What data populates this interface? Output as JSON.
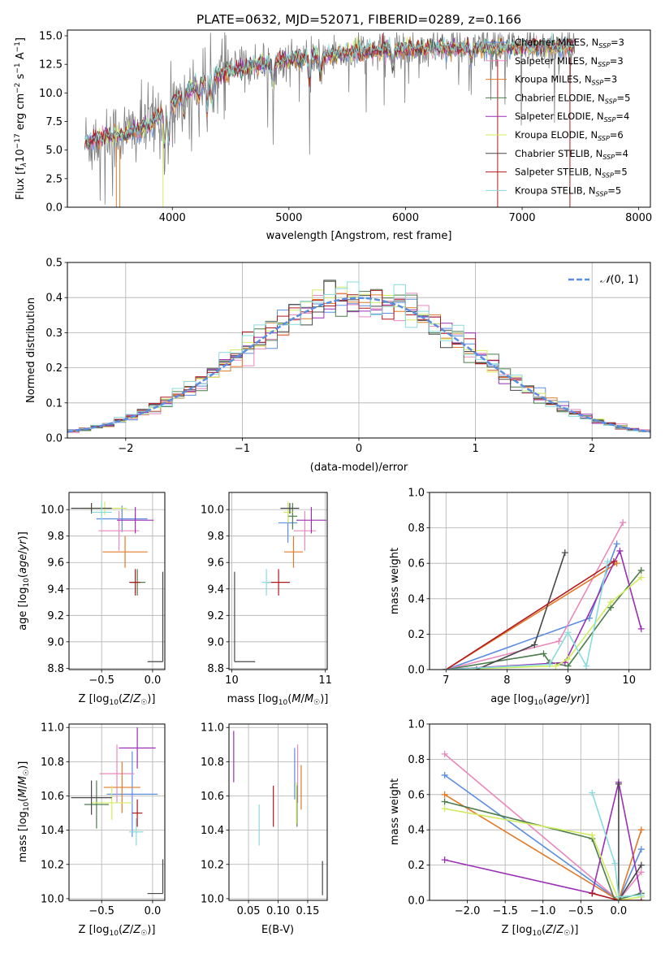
{
  "title": "PLATE=0632, MJD=52071, FIBERID=0289, z=0.166",
  "series": [
    {
      "name": "Chabrier MILES, N$_{SSP}$=3",
      "label_main": "Chabrier MILES, N",
      "label_sub": "SSP",
      "label_end": "=3",
      "color": "#5b8de0"
    },
    {
      "name": "Salpeter MILES, N$_{SSP}$=3",
      "label_main": "Salpeter MILES, N",
      "label_sub": "SSP",
      "label_end": "=3",
      "color": "#e888bc"
    },
    {
      "name": "Kroupa MILES, N$_{SSP}$=3",
      "label_main": "Kroupa MILES, N",
      "label_sub": "SSP",
      "label_end": "=3",
      "color": "#e07a28"
    },
    {
      "name": "Chabrier ELODIE, N$_{SSP}$=5",
      "label_main": "Chabrier ELODIE, N",
      "label_sub": "SSP",
      "label_end": "=5",
      "color": "#4c7c4c"
    },
    {
      "name": "Salpeter ELODIE, N$_{SSP}$=4",
      "label_main": "Salpeter ELODIE, N",
      "label_sub": "SSP",
      "label_end": "=4",
      "color": "#9a2fb5"
    },
    {
      "name": "Kroupa ELODIE, N$_{SSP}$=6",
      "label_main": "Kroupa ELODIE, N",
      "label_sub": "SSP",
      "label_end": "=6",
      "color": "#d2ec62"
    },
    {
      "name": "Chabrier STELIB, N$_{SSP}$=4",
      "label_main": "Chabrier STELIB, N",
      "label_sub": "SSP",
      "label_end": "=4",
      "color": "#484848"
    },
    {
      "name": "Salpeter STELIB, N$_{SSP}$=5",
      "label_main": "Salpeter STELIB, N",
      "label_sub": "SSP",
      "label_end": "=5",
      "color": "#b0181e"
    },
    {
      "name": "Kroupa STELIB, N$_{SSP}$=5",
      "label_main": "Kroupa STELIB, N",
      "label_sub": "SSP",
      "label_end": "=5",
      "color": "#88dcdc"
    }
  ],
  "chart_data": [
    {
      "id": "spectrum",
      "type": "line",
      "title": "PLATE=0632, MJD=52071, FIBERID=0289, z=0.166",
      "xlabel": "wavelength [Angstrom, rest frame]",
      "ylabel_main": "Flux [f",
      "ylabel_rest": "10",
      "ylabel_exp": "−17",
      "ylabel_units": " erg cm",
      "xlim": [
        3100,
        8100
      ],
      "ylim": [
        0,
        15.5
      ],
      "xticks": [
        4000,
        5000,
        6000,
        7000,
        8000
      ],
      "yticks": [
        0.0,
        2.5,
        5.0,
        7.5,
        10.0,
        12.5,
        15.0
      ],
      "data_color": "#808080",
      "continuum_x": [
        3250,
        3400,
        3600,
        3800,
        3950,
        4100,
        4300,
        4500,
        4800,
        5100,
        5500,
        5900,
        6300,
        6700,
        7000,
        7300,
        7450
      ],
      "continuum_y": [
        5.6,
        6.1,
        6.4,
        7.2,
        8.6,
        10.0,
        11.2,
        12.0,
        12.6,
        13.0,
        13.5,
        13.8,
        13.9,
        13.9,
        14.0,
        14.1,
        14.1
      ],
      "grid": false
    },
    {
      "id": "residuals",
      "type": "step",
      "xlabel": "(data-model)/error",
      "ylabel": "Normed distribution",
      "xlim": [
        -2.5,
        2.5
      ],
      "ylim": [
        0,
        0.5
      ],
      "xticks": [
        -2,
        -1,
        0,
        1,
        2
      ],
      "yticks": [
        0.0,
        0.1,
        0.2,
        0.3,
        0.4,
        0.5
      ],
      "bin_width": 0.1,
      "reference_label": "N(0,1)",
      "reference_color": "#5b8de0",
      "legend_position": "top-right",
      "grid": true
    },
    {
      "id": "age-vs-Z",
      "type": "errorbar",
      "xlabel": "Z [log10(Z/Z☉)]",
      "ylabel": "age  [log10(age/yr)]",
      "xlim": [
        -0.82,
        0.12
      ],
      "ylim": [
        8.79,
        10.13
      ],
      "xticks": [
        -0.5,
        0.0
      ],
      "xtick_labels": [
        "−0.5",
        "0.0"
      ],
      "yticks": [
        8.8,
        9.0,
        9.2,
        9.4,
        9.6,
        9.8,
        10.0
      ],
      "points": [
        {
          "s": 0,
          "x": -0.3,
          "xe": 0.25,
          "y": 9.93,
          "ye": 0.1
        },
        {
          "s": 1,
          "x": -0.33,
          "xe": 0.2,
          "y": 9.84,
          "ye": 0.15
        },
        {
          "s": 2,
          "x": -0.27,
          "xe": 0.22,
          "y": 9.68,
          "ye": 0.12
        },
        {
          "s": 3,
          "x": -0.15,
          "xe": 0.08,
          "y": 9.45,
          "ye": 0.1
        },
        {
          "s": 4,
          "x": -0.17,
          "xe": 0.18,
          "y": 9.92,
          "ye": 0.1
        },
        {
          "s": 5,
          "x": -0.47,
          "xe": 0.22,
          "y": 10.01,
          "ye": 0.05
        },
        {
          "s": 6,
          "x": -0.6,
          "xe": 0.2,
          "y": 10.01,
          "ye": 0.04
        },
        {
          "s": 7,
          "x": -0.17,
          "xe": 0.05,
          "y": 9.45,
          "ye": 0.1
        },
        {
          "s": 8,
          "x": -0.5,
          "xe": 0.1,
          "y": 9.98,
          "ye": 0.08
        }
      ],
      "corner": {
        "x": 0.1,
        "y": 8.85,
        "dx": -0.15,
        "dy": 0.68
      }
    },
    {
      "id": "age-vs-mass",
      "type": "errorbar",
      "xlabel": "mass [log10(M/M☉)]",
      "xlim": [
        9.97,
        11.02
      ],
      "ylim": [
        8.79,
        10.13
      ],
      "xticks": [
        10,
        11
      ],
      "xtick_labels": [
        "10",
        "11"
      ],
      "yticks": [
        8.8,
        9.0,
        9.2,
        9.4,
        9.6,
        9.8,
        10.0
      ],
      "points": [
        {
          "s": 0,
          "x": 10.6,
          "xe": 0.1,
          "y": 9.9,
          "ye": 0.15
        },
        {
          "s": 1,
          "x": 10.78,
          "xe": 0.12,
          "y": 9.84,
          "ye": 0.15
        },
        {
          "s": 2,
          "x": 10.66,
          "xe": 0.1,
          "y": 9.68,
          "ye": 0.12
        },
        {
          "s": 3,
          "x": 10.65,
          "xe": 0.05,
          "y": 9.95,
          "ye": 0.1
        },
        {
          "s": 4,
          "x": 10.85,
          "xe": 0.16,
          "y": 9.92,
          "ye": 0.1
        },
        {
          "s": 5,
          "x": 10.6,
          "xe": 0.05,
          "y": 9.98,
          "ye": 0.08
        },
        {
          "s": 6,
          "x": 10.62,
          "xe": 0.1,
          "y": 10.01,
          "ye": 0.04
        },
        {
          "s": 7,
          "x": 10.5,
          "xe": 0.12,
          "y": 9.45,
          "ye": 0.1
        },
        {
          "s": 8,
          "x": 10.37,
          "xe": 0.05,
          "y": 9.45,
          "ye": 0.1
        }
      ],
      "corner": {
        "x": 10.03,
        "y": 8.85,
        "dx": 0.22,
        "dy": 0.68
      }
    },
    {
      "id": "mass-weight-vs-age",
      "type": "line",
      "xlabel": "age  [log10(age/yr)]",
      "ylabel": "mass weight",
      "xlim": [
        6.73,
        10.35
      ],
      "ylim": [
        0,
        1
      ],
      "xticks": [
        7,
        8,
        9,
        10
      ],
      "yticks": [
        0.0,
        0.2,
        0.4,
        0.6,
        0.8,
        1.0
      ],
      "series_points": [
        {
          "s": 0,
          "x": [
            7.0,
            9.35,
            9.8
          ],
          "y": [
            0.0,
            0.29,
            0.71
          ]
        },
        {
          "s": 1,
          "x": [
            7.0,
            8.85,
            9.9
          ],
          "y": [
            0.0,
            0.16,
            0.83
          ]
        },
        {
          "s": 2,
          "x": [
            7.0,
            9.8
          ],
          "y": [
            0.0,
            0.6
          ]
        },
        {
          "s": 3,
          "x": [
            7.0,
            8.6,
            8.7,
            9.0,
            9.7,
            10.2
          ],
          "y": [
            0.0,
            0.09,
            0.04,
            0.02,
            0.35,
            0.56
          ]
        },
        {
          "s": 4,
          "x": [
            7.0,
            8.95,
            9.85,
            10.2
          ],
          "y": [
            0.0,
            0.04,
            0.67,
            0.23
          ]
        },
        {
          "s": 5,
          "x": [
            7.0,
            8.8,
            9.0,
            9.7,
            10.2
          ],
          "y": [
            0.0,
            0.02,
            0.06,
            0.38,
            0.52
          ]
        },
        {
          "s": 6,
          "x": [
            7.5,
            8.45,
            8.95
          ],
          "y": [
            0.0,
            0.14,
            0.66
          ]
        },
        {
          "s": 7,
          "x": [
            7.0,
            9.75
          ],
          "y": [
            0.0,
            0.61
          ]
        },
        {
          "s": 8,
          "x": [
            7.0,
            8.7,
            9.0,
            9.3,
            9.65
          ],
          "y": [
            0.0,
            0.03,
            0.21,
            0.02,
            0.61
          ]
        }
      ],
      "grid": true
    },
    {
      "id": "mass-vs-Z",
      "type": "errorbar",
      "xlabel": "Z [log10(Z/Z☉)]",
      "ylabel": "mass [log10(M/M☉)]",
      "xlim": [
        -0.82,
        0.12
      ],
      "ylim": [
        9.99,
        11.02
      ],
      "xticks": [
        -0.5,
        0.0
      ],
      "xtick_labels": [
        "−0.5",
        "0.0"
      ],
      "yticks": [
        10.0,
        10.2,
        10.4,
        10.6,
        10.8,
        11.0
      ],
      "points": [
        {
          "s": 0,
          "x": -0.2,
          "xe": 0.25,
          "y": 10.61,
          "ye": 0.25
        },
        {
          "s": 1,
          "x": -0.35,
          "xe": 0.17,
          "y": 10.73,
          "ye": 0.17
        },
        {
          "s": 2,
          "x": -0.3,
          "xe": 0.18,
          "y": 10.65,
          "ye": 0.15
        },
        {
          "s": 3,
          "x": -0.55,
          "xe": 0.12,
          "y": 10.55,
          "ye": 0.14
        },
        {
          "s": 4,
          "x": -0.15,
          "xe": 0.18,
          "y": 10.88,
          "ye": 0.12
        },
        {
          "s": 5,
          "x": -0.4,
          "xe": 0.2,
          "y": 10.56,
          "ye": 0.1
        },
        {
          "s": 6,
          "x": -0.6,
          "xe": 0.2,
          "y": 10.59,
          "ye": 0.1
        },
        {
          "s": 7,
          "x": -0.15,
          "xe": 0.05,
          "y": 10.5,
          "ye": 0.08
        },
        {
          "s": 8,
          "x": -0.16,
          "xe": 0.07,
          "y": 10.39,
          "ye": 0.08
        }
      ],
      "corner": {
        "x": 0.1,
        "y": 10.03,
        "dx": -0.15,
        "dy": 0.2
      }
    },
    {
      "id": "mass-vs-ebv",
      "type": "errorbar",
      "xlabel": "E(B-V)",
      "xlim": [
        0.017,
        0.183
      ],
      "ylim": [
        9.99,
        11.02
      ],
      "xticks": [
        0.05,
        0.1,
        0.15
      ],
      "xtick_labels": [
        "0.05",
        "0.10",
        "0.15"
      ],
      "yticks": [
        10.0,
        10.2,
        10.4,
        10.6,
        10.8,
        11.0
      ],
      "points": [
        {
          "s": 0,
          "x": 0.128,
          "y": 10.73,
          "ye": 0.15
        },
        {
          "s": 1,
          "x": 0.133,
          "y": 10.73,
          "ye": 0.17
        },
        {
          "s": 2,
          "x": 0.139,
          "y": 10.65,
          "ye": 0.13
        },
        {
          "s": 3,
          "x": 0.132,
          "y": 10.54,
          "ye": 0.12
        },
        {
          "s": 4,
          "x": 0.025,
          "y": 10.83,
          "ye": 0.15
        },
        {
          "s": 5,
          "x": 0.131,
          "y": 10.56,
          "ye": 0.12
        },
        {
          "s": 6,
          "x": 0.175,
          "y": 10.12,
          "ye": 0.1
        },
        {
          "s": 7,
          "x": 0.092,
          "y": 10.54,
          "ye": 0.12
        },
        {
          "s": 8,
          "x": 0.068,
          "y": 10.43,
          "ye": 0.12
        }
      ]
    },
    {
      "id": "mass-weight-vs-Z",
      "type": "line",
      "xlabel": "Z [log10(Z/Z☉)]",
      "ylabel": "mass weight",
      "xlim": [
        -2.5,
        0.42
      ],
      "ylim": [
        0,
        1
      ],
      "xticks": [
        -2.0,
        -1.5,
        -1.0,
        -0.5,
        0.0
      ],
      "xtick_labels": [
        "−2.0",
        "−1.5",
        "−1.0",
        "−0.5",
        "0.0"
      ],
      "yticks": [
        0.0,
        0.2,
        0.4,
        0.6,
        0.8,
        1.0
      ],
      "series_points": [
        {
          "s": 0,
          "x": [
            -2.3,
            0.0,
            0.3
          ],
          "y": [
            0.71,
            0.0,
            0.29
          ]
        },
        {
          "s": 1,
          "x": [
            -2.3,
            0.0,
            0.3
          ],
          "y": [
            0.83,
            0.0,
            0.16
          ]
        },
        {
          "s": 2,
          "x": [
            -2.3,
            0.0,
            0.3
          ],
          "y": [
            0.6,
            0.0,
            0.4
          ]
        },
        {
          "s": 3,
          "x": [
            -2.3,
            -0.35,
            -0.05,
            0.3
          ],
          "y": [
            0.56,
            0.35,
            0.0,
            0.04
          ]
        },
        {
          "s": 4,
          "x": [
            -2.3,
            -0.35,
            0.0,
            0.3
          ],
          "y": [
            0.23,
            0.04,
            0.67,
            0.02
          ]
        },
        {
          "s": 5,
          "x": [
            -2.3,
            -0.35,
            0.0,
            0.3
          ],
          "y": [
            0.52,
            0.37,
            0.0,
            0.02
          ]
        },
        {
          "s": 6,
          "x": [
            0.0,
            0.0,
            0.3
          ],
          "y": [
            0.66,
            0.0,
            0.2
          ]
        },
        {
          "s": 7,
          "x": [
            -0.35,
            0.0,
            0.3
          ],
          "y": [
            0.04,
            0.0,
            0.0
          ]
        },
        {
          "s": 8,
          "x": [
            -0.35,
            -0.05,
            0.0,
            0.3
          ],
          "y": [
            0.61,
            0.21,
            0.02,
            0.03
          ]
        }
      ],
      "grid": true
    }
  ]
}
